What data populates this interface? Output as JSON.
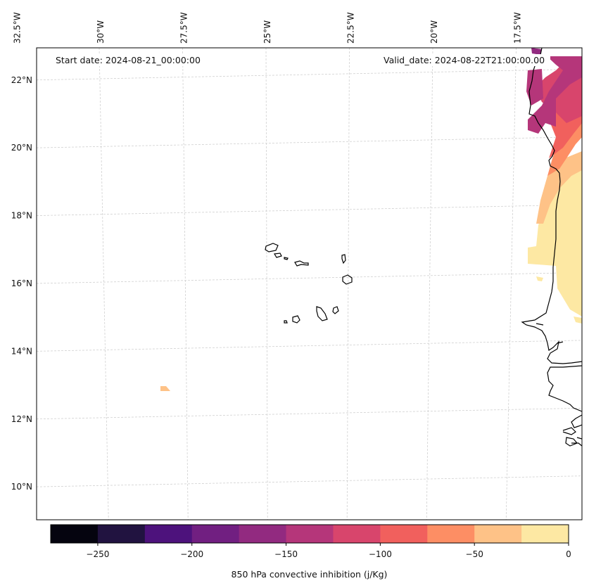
{
  "map": {
    "projection": "Lambert Conformal (approx)",
    "extent_lon": [
      -32.5,
      -15.9
    ],
    "extent_lat": [
      8.9,
      22.8
    ],
    "gridlines": true,
    "lon_ticks": [
      {
        "value": -32.5,
        "label": "32.5°W"
      },
      {
        "value": -30.0,
        "label": "30°W"
      },
      {
        "value": -27.5,
        "label": "27.5°W"
      },
      {
        "value": -25.0,
        "label": "25°W"
      },
      {
        "value": -22.5,
        "label": "22.5°W"
      },
      {
        "value": -20.0,
        "label": "20°W"
      },
      {
        "value": -17.5,
        "label": "17.5°W"
      }
    ],
    "lat_ticks": [
      {
        "value": 22,
        "label": "22°N"
      },
      {
        "value": 20,
        "label": "20°N"
      },
      {
        "value": 18,
        "label": "18°N"
      },
      {
        "value": 16,
        "label": "16°N"
      },
      {
        "value": 14,
        "label": "14°N"
      },
      {
        "value": 12,
        "label": "12°N"
      },
      {
        "value": 10,
        "label": "10°N"
      }
    ]
  },
  "annotations": {
    "start_date": "Start date: 2024-08-21_00:00:00",
    "valid_date": "Valid_date: 2024-08-22T21:00:00.00"
  },
  "colorbar": {
    "label": "850 hPa convective inhibition (j/Kg)",
    "bounds": [
      -275,
      -250,
      -225,
      -200,
      -175,
      -150,
      -125,
      -100,
      -75,
      -50,
      -25,
      0
    ],
    "colors": [
      "#05040f",
      "#211340",
      "#4d127c",
      "#711f81",
      "#922a80",
      "#b5367a",
      "#d8456c",
      "#f1605d",
      "#fd8e64",
      "#fec287",
      "#fde8a3"
    ],
    "ticks": [
      {
        "value": -250,
        "label": "−250"
      },
      {
        "value": -200,
        "label": "−200"
      },
      {
        "value": -150,
        "label": "−150"
      },
      {
        "value": -100,
        "label": "−100"
      },
      {
        "value": -50,
        "label": "−50"
      },
      {
        "value": 0,
        "label": "0"
      }
    ]
  }
}
